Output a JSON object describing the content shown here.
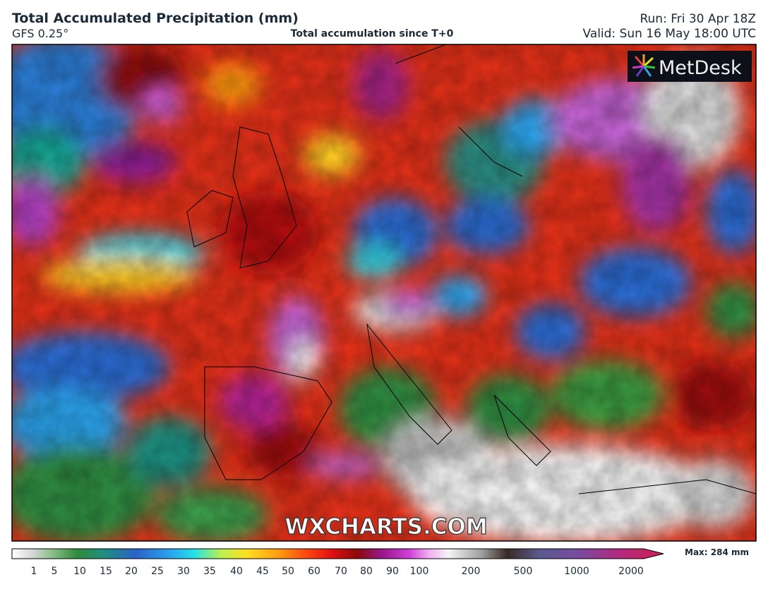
{
  "header": {
    "title": "Total Accumulated Precipitation (mm)",
    "model": "GFS 0.25°",
    "subtitle": "Total accumulation since T+0",
    "run": "Run: Fri 30 Apr 18Z",
    "valid": "Valid: Sun 16 May 18:00 UTC"
  },
  "map": {
    "logo": "MetDesk",
    "watermark": "WXCHARTS.COM"
  },
  "colorbar": {
    "labels": [
      "1",
      "5",
      "10",
      "15",
      "20",
      "25",
      "30",
      "35",
      "40",
      "45",
      "50",
      "60",
      "70",
      "80",
      "90",
      "100",
      "200",
      "500",
      "1000",
      "2000"
    ],
    "max_label": "Max: 284 mm"
  }
}
